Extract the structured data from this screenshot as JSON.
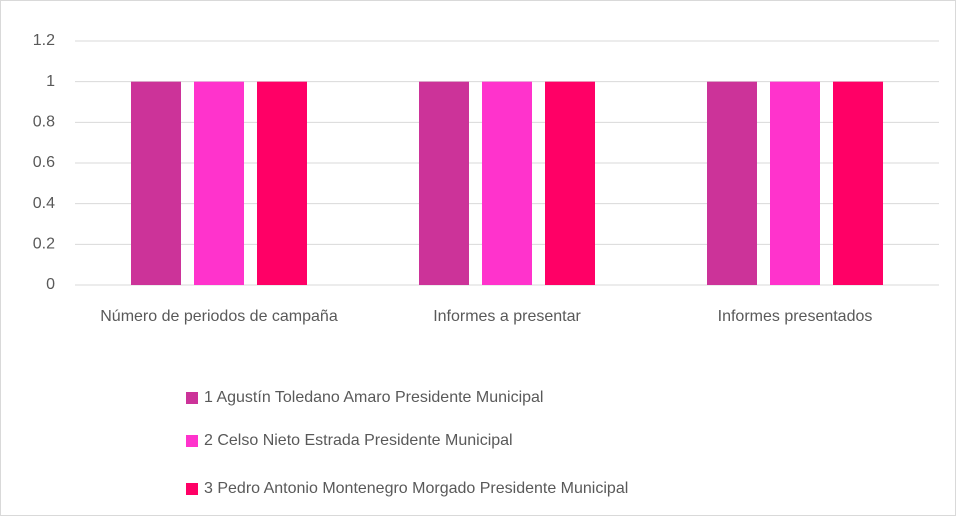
{
  "chart_data": {
    "type": "bar",
    "categories": [
      "Número de periodos de campaña",
      "Informes a presentar",
      "Informes presentados"
    ],
    "series": [
      {
        "name": "1 Agustín Toledano Amaro Presidente Municipal",
        "color": "#cc3399",
        "values": [
          1,
          1,
          1
        ]
      },
      {
        "name": "2 Celso Nieto Estrada Presidente Municipal",
        "color": "#ff33cc",
        "values": [
          1,
          1,
          1
        ]
      },
      {
        "name": "3 Pedro Antonio Montenegro Morgado Presidente Municipal",
        "color": "#ff0066",
        "values": [
          1,
          1,
          1
        ]
      }
    ],
    "ylim": [
      0,
      1.2
    ],
    "yticks": [
      0,
      0.2,
      0.4,
      0.6,
      0.8,
      1,
      1.2
    ],
    "grid": true,
    "legend": "bottom"
  }
}
